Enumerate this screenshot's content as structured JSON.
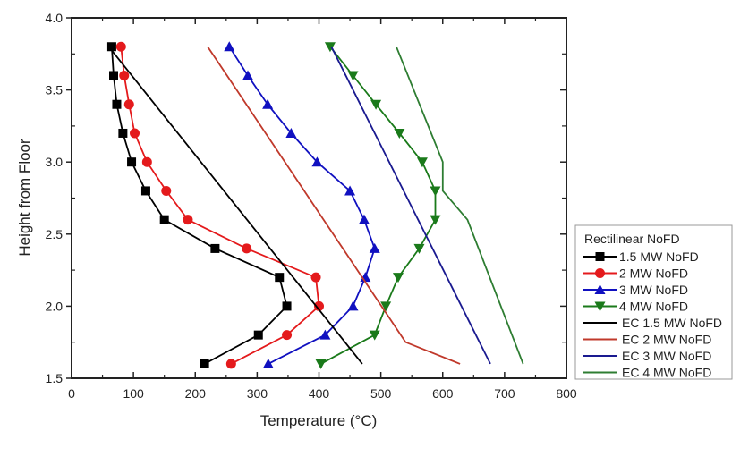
{
  "chart_data": {
    "type": "line",
    "title": "",
    "xlabel": "Temperature (°C)",
    "ylabel": "Height from Floor",
    "xlim": [
      0,
      800
    ],
    "ylim": [
      1.5,
      4.0
    ],
    "xticks": [
      0,
      100,
      200,
      300,
      400,
      500,
      600,
      700,
      800
    ],
    "yticks": [
      1.5,
      2.0,
      2.5,
      3.0,
      3.5,
      4.0
    ],
    "xtick_labels": [
      "0",
      "100",
      "200",
      "300",
      "400",
      "500",
      "600",
      "700",
      "800"
    ],
    "ytick_labels": [
      "1.5",
      "2.0",
      "2.5",
      "3.0",
      "3.5",
      "4.0"
    ],
    "grid": false,
    "legend": {
      "title": "Rectilinear NoFD",
      "position": "right"
    },
    "series": [
      {
        "name": "1.5 MW NoFD",
        "color": "#000000",
        "marker": "square",
        "x": [
          65,
          68,
          73,
          83,
          97,
          120,
          150,
          232,
          336,
          348,
          302,
          215
        ],
        "y": [
          3.8,
          3.6,
          3.4,
          3.2,
          3.0,
          2.8,
          2.6,
          2.4,
          2.2,
          2.0,
          1.8,
          1.6
        ]
      },
      {
        "name": "2 MW NoFD",
        "color": "#e41a1c",
        "marker": "circle",
        "x": [
          80,
          85,
          93,
          102,
          122,
          153,
          188,
          283,
          395,
          400,
          348,
          258
        ],
        "y": [
          3.8,
          3.6,
          3.4,
          3.2,
          3.0,
          2.8,
          2.6,
          2.4,
          2.2,
          2.0,
          1.8,
          1.6
        ]
      },
      {
        "name": "3 MW NoFD",
        "color": "#1010c0",
        "marker": "triangle-up",
        "x": [
          255,
          285,
          317,
          355,
          397,
          450,
          473,
          490,
          475,
          455,
          410,
          318
        ],
        "y": [
          3.8,
          3.6,
          3.4,
          3.2,
          3.0,
          2.8,
          2.6,
          2.4,
          2.2,
          2.0,
          1.8,
          1.6
        ]
      },
      {
        "name": "4 MW NoFD",
        "color": "#1a7a1a",
        "marker": "triangle-down",
        "x": [
          418,
          455,
          492,
          530,
          567,
          588,
          588,
          562,
          528,
          508,
          490,
          403
        ],
        "y": [
          3.8,
          3.6,
          3.4,
          3.2,
          3.0,
          2.8,
          2.6,
          2.4,
          2.2,
          2.0,
          1.8,
          1.6
        ]
      },
      {
        "name": "EC 1.5 MW NoFD",
        "color": "#000000",
        "marker": "none",
        "x": [
          60,
          470
        ],
        "y": [
          3.8,
          1.6
        ]
      },
      {
        "name": "EC 2 MW NoFD",
        "color": "#c0392b",
        "marker": "none",
        "x": [
          220,
          540,
          628
        ],
        "y": [
          3.8,
          1.75,
          1.6
        ]
      },
      {
        "name": "EC 3 MW NoFD",
        "color": "#1a1a90",
        "marker": "none",
        "x": [
          420,
          677
        ],
        "y": [
          3.8,
          1.6
        ]
      },
      {
        "name": "EC 4 MW NoFD",
        "color": "#2e7d32",
        "marker": "none",
        "x": [
          525,
          600,
          600,
          640,
          730
        ],
        "y": [
          3.8,
          3.0,
          2.8,
          2.6,
          1.6
        ]
      }
    ]
  }
}
